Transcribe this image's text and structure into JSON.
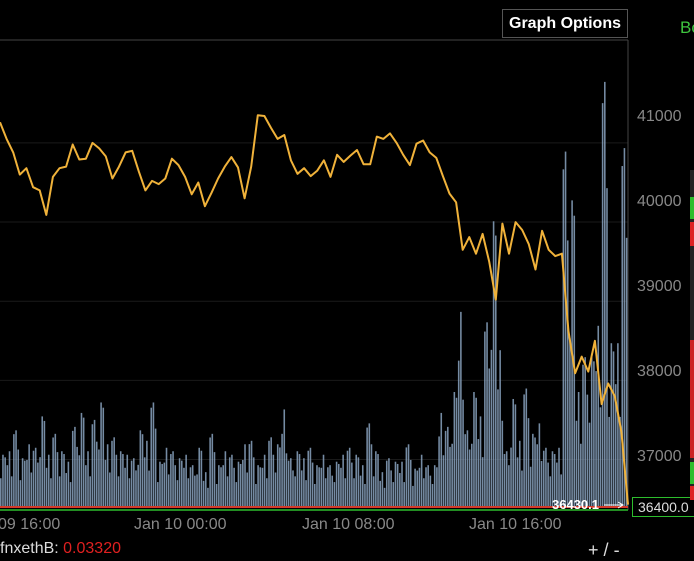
{
  "header": {
    "graph_options_label": "Graph Options",
    "side_label": "Bo"
  },
  "chart_data": {
    "type": "line",
    "title": "",
    "ylim": [
      36400,
      42300
    ],
    "yticks": [
      "41000",
      "40000",
      "39000",
      "38000",
      "37000"
    ],
    "ytick_values": [
      41000,
      40000,
      39000,
      38000,
      37000
    ],
    "xtick_labels": [
      "09 16:00",
      "Jan 10 00:00",
      "Jan 10 08:00",
      "Jan 10 16:00"
    ],
    "series": [
      {
        "line_color": "#f0b23a",
        "values": [
          41260,
          41050,
          40880,
          40600,
          40680,
          40440,
          40400,
          40090,
          40570,
          40680,
          40700,
          40980,
          40790,
          40800,
          41000,
          40930,
          40830,
          40550,
          40700,
          40880,
          40900,
          40640,
          40400,
          40520,
          40480,
          40550,
          40800,
          40720,
          40570,
          40350,
          40500,
          40200,
          40370,
          40550,
          40700,
          40820,
          40690,
          40300,
          40700,
          41350,
          41340,
          41190,
          41050,
          41100,
          40780,
          40610,
          40680,
          40580,
          40650,
          40780,
          40570,
          40850,
          40760,
          40840,
          40910,
          40730,
          40730,
          41080,
          41050,
          41120,
          41000,
          40850,
          40720,
          40990,
          41030,
          40880,
          40810,
          40580,
          40360,
          40250,
          39650,
          39810,
          39600,
          39850,
          39500,
          39020,
          39980,
          39600,
          40000,
          39900,
          39720,
          39400,
          39890,
          39650,
          39570,
          39600,
          38620,
          38090,
          38300,
          38110,
          38500,
          37700,
          37960,
          37800,
          37350,
          36430
        ],
        "name": ""
      }
    ],
    "volume": {
      "bar_color": "#8aa3bf",
      "values": [
        150,
        160,
        220,
        140,
        180,
        170,
        260,
        150,
        210,
        160,
        130,
        230,
        270,
        160,
        250,
        300,
        180,
        200,
        160,
        150,
        140,
        220,
        190,
        300,
        130,
        170,
        160,
        140,
        150,
        120,
        170,
        100,
        210,
        120,
        160,
        150,
        130,
        180,
        190,
        120,
        150,
        200,
        180,
        280,
        140,
        160,
        140,
        170,
        120,
        150,
        120,
        130,
        150,
        170,
        150,
        120,
        240,
        160,
        100,
        140,
        130,
        130,
        180,
        110,
        150,
        120,
        120,
        270,
        230,
        330,
        560,
        220,
        330,
        260,
        530,
        820,
        450,
        160,
        310,
        190,
        340,
        210,
        240,
        170,
        160,
        170,
        1020,
        880,
        330,
        430,
        440,
        520,
        1220,
        470,
        470,
        1030
      ]
    },
    "last_value": "36430.1",
    "current_price": "36400.0"
  },
  "footer": {
    "ticker_label": "fnxethB:",
    "ticker_value": "0.03320",
    "zoom_in": "+",
    "separator": "/",
    "zoom_out": "-"
  }
}
